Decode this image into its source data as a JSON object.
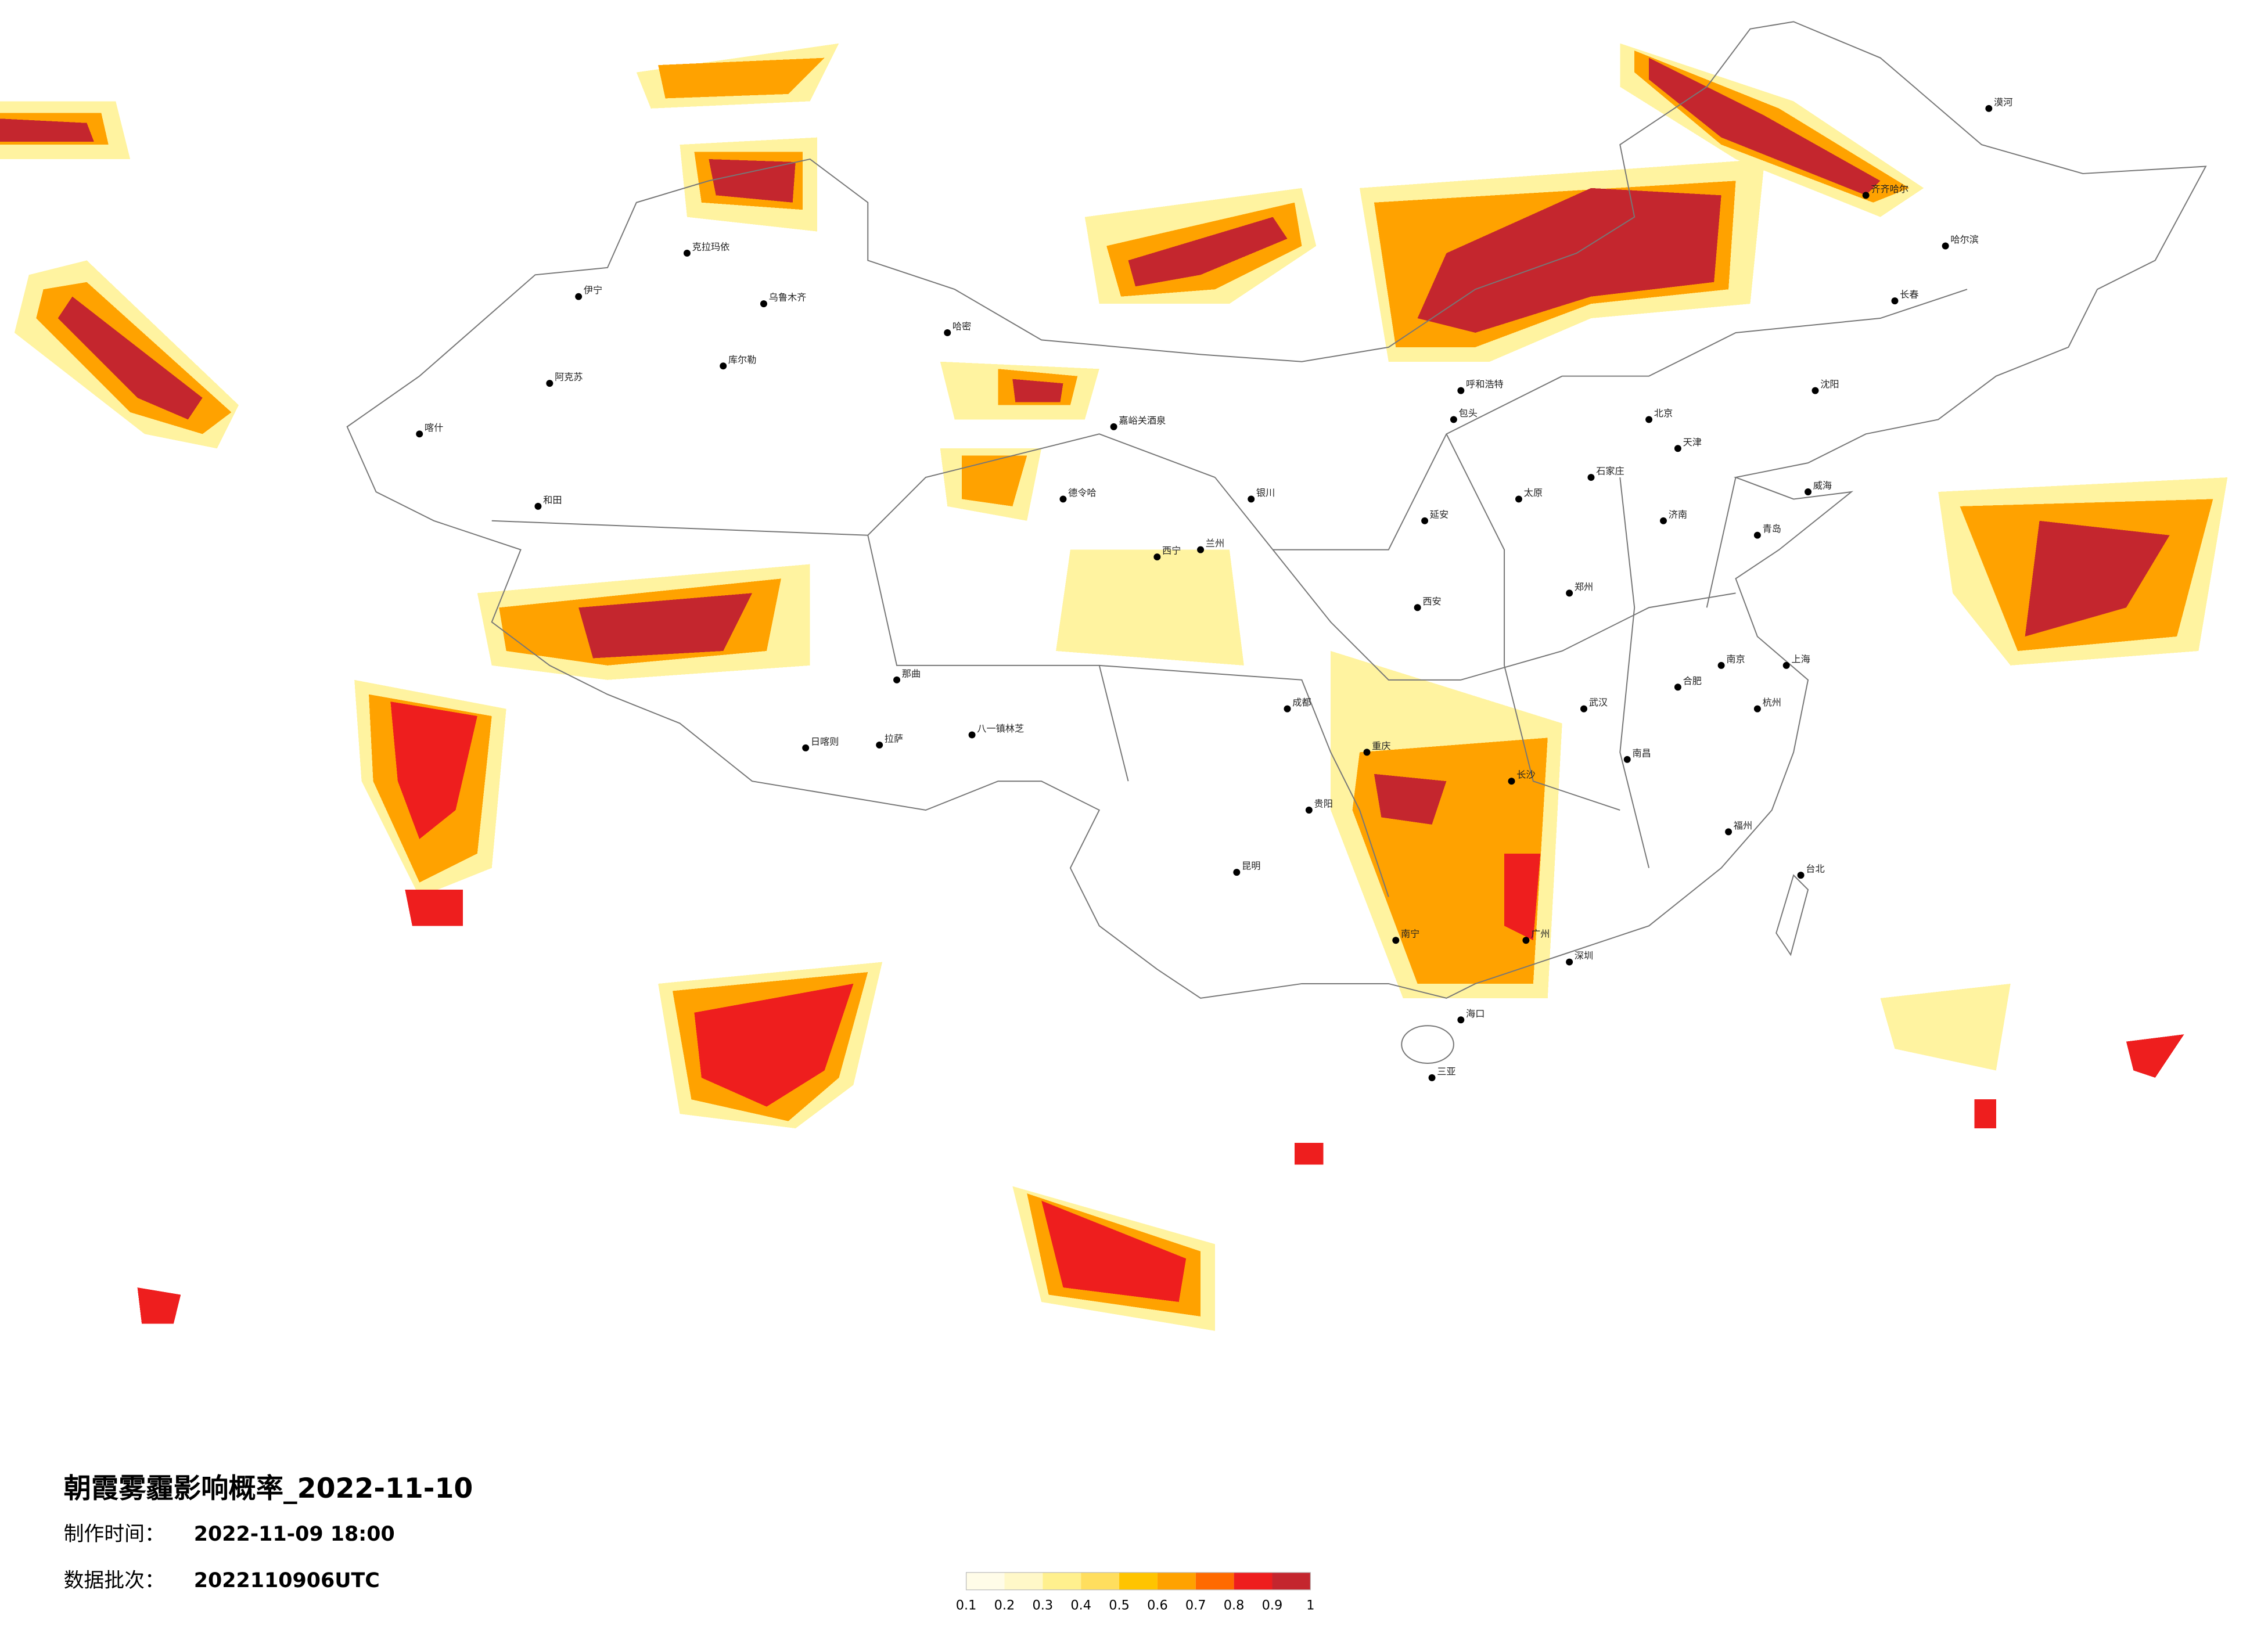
{
  "title": "朝霞雾霾影响概率_2022-11-10",
  "info": [
    {
      "label": "制作时间：",
      "value": "2022-11-09 18:00"
    },
    {
      "label": "数据批次：",
      "value": "2022110906UTC"
    }
  ],
  "legend": {
    "ticks": [
      0.1,
      0.2,
      0.3,
      0.4,
      0.5,
      0.6,
      0.7,
      0.8,
      0.9,
      1
    ],
    "colors": [
      "#fffce8",
      "#fff8c8",
      "#fff08e",
      "#ffde5e",
      "#ffc400",
      "#ffa200",
      "#ff6a00",
      "#ee1e1e",
      "#c4262e"
    ]
  },
  "cities": [
    "克拉玛依",
    "伊宁",
    "阿克苏",
    "喀什",
    "和田",
    "乌鲁木齐",
    "哈密",
    "库尔勒",
    "德令哈",
    "那曲",
    "拉萨",
    "日喀则",
    "八一镇林芝",
    "嘉峪关酒泉",
    "西宁",
    "银川",
    "兰州",
    "西安",
    "延安",
    "成都",
    "重庆",
    "昆明",
    "贵阳",
    "南宁",
    "广州",
    "深圳",
    "海口",
    "三亚",
    "长沙",
    "武汉",
    "南昌",
    "福州",
    "台北",
    "上海",
    "南京",
    "杭州",
    "合肥",
    "郑州",
    "济南",
    "北京",
    "天津",
    "石家庄",
    "太原",
    "呼和浩特",
    "沈阳",
    "长春",
    "哈尔滨",
    "齐齐哈尔",
    "漠河",
    "青岛",
    "威海",
    "包头"
  ]
}
